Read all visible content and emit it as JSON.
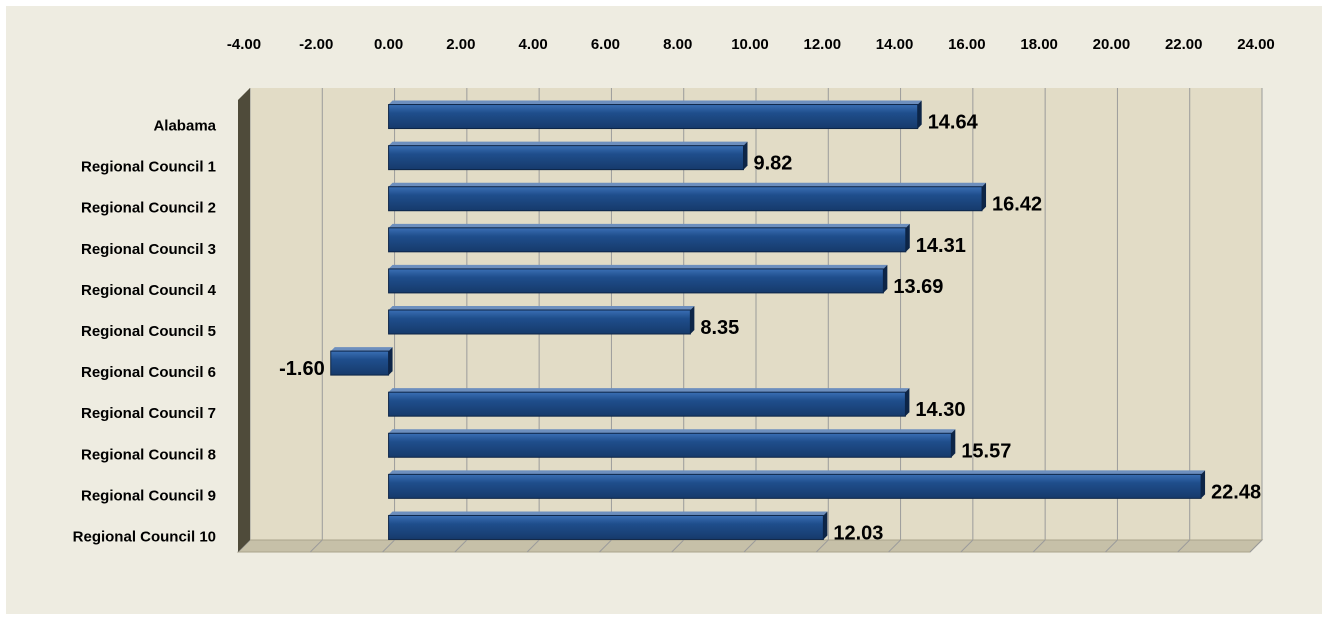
{
  "colors": {
    "background": "#eeece1",
    "plot_area": "#e2dcc6",
    "bar": "#1f4e8c",
    "bar_dark": "#163a6b",
    "bar_edge": "#0d2547",
    "gridline": "#9b9b9b",
    "floor": "#c6c0a8",
    "left_wall": "#4f4b3a"
  },
  "chart_data": {
    "type": "bar",
    "orientation": "horizontal",
    "categories": [
      "Alabama",
      "Regional Council 1",
      "Regional Council 2",
      "Regional Council 3",
      "Regional Council 4",
      "Regional Council 5",
      "Regional Council 6",
      "Regional Council 7",
      "Regional Council 8",
      "Regional Council 9",
      "Regional Council 10"
    ],
    "values": [
      14.64,
      9.82,
      16.42,
      14.31,
      13.69,
      8.35,
      -1.6,
      14.3,
      15.57,
      22.48,
      12.03
    ],
    "data_labels": [
      "14.64",
      "9.82",
      "16.42",
      "14.31",
      "13.69",
      "8.35",
      "-1.60",
      "14.30",
      "15.57",
      "22.48",
      "12.03"
    ],
    "x_ticks": [
      "-4.00",
      "-2.00",
      "0.00",
      "2.00",
      "4.00",
      "6.00",
      "8.00",
      "10.00",
      "12.00",
      "14.00",
      "16.00",
      "18.00",
      "20.00",
      "22.00",
      "24.00"
    ],
    "xlim": [
      -4,
      24
    ],
    "x_axis_position": "top",
    "grid": true,
    "legend": "none",
    "style": "3d"
  }
}
